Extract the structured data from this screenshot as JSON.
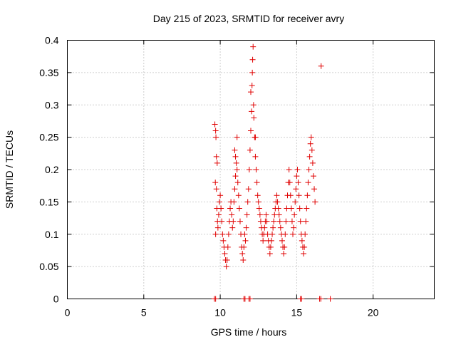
{
  "chart_data": {
    "type": "scatter",
    "title": "Day 215 of 2023, SRMTID for receiver avry",
    "xlabel": "GPS time / hours",
    "ylabel": "SRMTID / TECUs",
    "xlim": [
      0,
      24
    ],
    "ylim": [
      0,
      0.4
    ],
    "xticks": [
      0,
      5,
      10,
      15,
      20
    ],
    "yticks": [
      0,
      0.05,
      0.1,
      0.15,
      0.2,
      0.25,
      0.3,
      0.35,
      0.4
    ],
    "xtick_labels": [
      "0",
      "5",
      "10",
      "15",
      "20"
    ],
    "ytick_labels": [
      "0",
      "0.05",
      "0.1",
      "0.15",
      "0.2",
      "0.25",
      "0.3",
      "0.35",
      "0.4"
    ],
    "grid": true,
    "marker": "+",
    "color": "#e00000",
    "series": [
      {
        "name": "SRMTID",
        "points": [
          [
            9.65,
            0.27
          ],
          [
            9.7,
            0.26
          ],
          [
            9.72,
            0.25
          ],
          [
            9.75,
            0.22
          ],
          [
            9.8,
            0.21
          ],
          [
            9.68,
            0.18
          ],
          [
            9.75,
            0.17
          ],
          [
            9.78,
            0.14
          ],
          [
            9.82,
            0.12
          ],
          [
            9.7,
            0.1
          ],
          [
            9.85,
            0.11
          ],
          [
            9.9,
            0.13
          ],
          [
            9.95,
            0.15
          ],
          [
            10.0,
            0.16
          ],
          [
            10.05,
            0.14
          ],
          [
            10.1,
            0.12
          ],
          [
            10.15,
            0.1
          ],
          [
            10.2,
            0.09
          ],
          [
            10.25,
            0.08
          ],
          [
            10.3,
            0.07
          ],
          [
            10.35,
            0.06
          ],
          [
            10.4,
            0.05
          ],
          [
            10.45,
            0.06
          ],
          [
            10.5,
            0.08
          ],
          [
            10.55,
            0.1
          ],
          [
            10.6,
            0.12
          ],
          [
            10.65,
            0.14
          ],
          [
            10.7,
            0.15
          ],
          [
            10.75,
            0.13
          ],
          [
            10.8,
            0.11
          ],
          [
            10.85,
            0.12
          ],
          [
            10.9,
            0.15
          ],
          [
            10.95,
            0.17
          ],
          [
            11.0,
            0.19
          ],
          [
            11.05,
            0.21
          ],
          [
            11.1,
            0.2
          ],
          [
            11.0,
            0.22
          ],
          [
            10.95,
            0.23
          ],
          [
            11.15,
            0.18
          ],
          [
            11.2,
            0.16
          ],
          [
            11.25,
            0.14
          ],
          [
            11.3,
            0.12
          ],
          [
            11.35,
            0.1
          ],
          [
            11.4,
            0.08
          ],
          [
            11.45,
            0.07
          ],
          [
            11.5,
            0.06
          ],
          [
            11.55,
            0.08
          ],
          [
            11.6,
            0.1
          ],
          [
            11.65,
            0.09
          ],
          [
            11.7,
            0.11
          ],
          [
            11.75,
            0.13
          ],
          [
            11.8,
            0.15
          ],
          [
            11.85,
            0.17
          ],
          [
            11.9,
            0.2
          ],
          [
            11.95,
            0.23
          ],
          [
            12.0,
            0.26
          ],
          [
            12.05,
            0.29
          ],
          [
            12.08,
            0.33
          ],
          [
            12.1,
            0.35
          ],
          [
            12.12,
            0.37
          ],
          [
            12.15,
            0.39
          ],
          [
            12.18,
            0.3
          ],
          [
            12.2,
            0.28
          ],
          [
            12.25,
            0.25
          ],
          [
            12.3,
            0.22
          ],
          [
            12.35,
            0.2
          ],
          [
            12.4,
            0.18
          ],
          [
            12.45,
            0.16
          ],
          [
            12.5,
            0.15
          ],
          [
            12.55,
            0.14
          ],
          [
            12.6,
            0.13
          ],
          [
            12.65,
            0.12
          ],
          [
            12.7,
            0.11
          ],
          [
            12.75,
            0.1
          ],
          [
            12.8,
            0.09
          ],
          [
            12.85,
            0.1
          ],
          [
            12.9,
            0.11
          ],
          [
            12.95,
            0.12
          ],
          [
            13.0,
            0.13
          ],
          [
            13.05,
            0.12
          ],
          [
            13.1,
            0.1
          ],
          [
            13.15,
            0.09
          ],
          [
            13.2,
            0.08
          ],
          [
            13.25,
            0.07
          ],
          [
            13.3,
            0.08
          ],
          [
            13.35,
            0.09
          ],
          [
            13.4,
            0.1
          ],
          [
            13.45,
            0.11
          ],
          [
            13.5,
            0.12
          ],
          [
            13.55,
            0.13
          ],
          [
            13.6,
            0.14
          ],
          [
            13.65,
            0.15
          ],
          [
            13.7,
            0.16
          ],
          [
            13.75,
            0.15
          ],
          [
            13.8,
            0.14
          ],
          [
            13.85,
            0.13
          ],
          [
            13.9,
            0.12
          ],
          [
            13.95,
            0.11
          ],
          [
            14.0,
            0.1
          ],
          [
            14.05,
            0.09
          ],
          [
            14.1,
            0.08
          ],
          [
            14.15,
            0.07
          ],
          [
            14.2,
            0.08
          ],
          [
            14.25,
            0.1
          ],
          [
            14.3,
            0.12
          ],
          [
            14.35,
            0.14
          ],
          [
            14.4,
            0.16
          ],
          [
            14.45,
            0.18
          ],
          [
            14.5,
            0.2
          ],
          [
            14.55,
            0.18
          ],
          [
            14.6,
            0.16
          ],
          [
            14.65,
            0.14
          ],
          [
            14.7,
            0.12
          ],
          [
            14.75,
            0.1
          ],
          [
            14.8,
            0.11
          ],
          [
            14.85,
            0.13
          ],
          [
            14.9,
            0.15
          ],
          [
            14.95,
            0.17
          ],
          [
            15.0,
            0.19
          ],
          [
            15.05,
            0.2
          ],
          [
            15.1,
            0.18
          ],
          [
            15.15,
            0.16
          ],
          [
            15.2,
            0.14
          ],
          [
            15.25,
            0.12
          ],
          [
            15.3,
            0.1
          ],
          [
            15.35,
            0.09
          ],
          [
            15.4,
            0.08
          ],
          [
            15.45,
            0.07
          ],
          [
            15.5,
            0.08
          ],
          [
            15.55,
            0.1
          ],
          [
            15.6,
            0.12
          ],
          [
            15.65,
            0.14
          ],
          [
            15.7,
            0.16
          ],
          [
            15.75,
            0.18
          ],
          [
            15.8,
            0.2
          ],
          [
            15.85,
            0.22
          ],
          [
            15.9,
            0.24
          ],
          [
            15.95,
            0.25
          ],
          [
            16.0,
            0.23
          ],
          [
            16.05,
            0.21
          ],
          [
            16.1,
            0.19
          ],
          [
            16.15,
            0.17
          ],
          [
            16.2,
            0.15
          ],
          [
            16.6,
            0.36
          ],
          [
            12.3,
            0.25
          ],
          [
            11.1,
            0.25
          ],
          [
            12.0,
            0.32
          ]
        ]
      }
    ],
    "zero_points": [
      [
        9.62,
        0
      ],
      [
        9.7,
        0
      ],
      [
        11.55,
        0
      ],
      [
        11.62,
        0
      ],
      [
        11.88,
        0
      ],
      [
        11.95,
        0
      ],
      [
        15.25,
        0
      ],
      [
        15.32,
        0
      ],
      [
        16.5,
        0
      ],
      [
        16.58,
        0
      ],
      [
        17.2,
        0
      ]
    ]
  }
}
